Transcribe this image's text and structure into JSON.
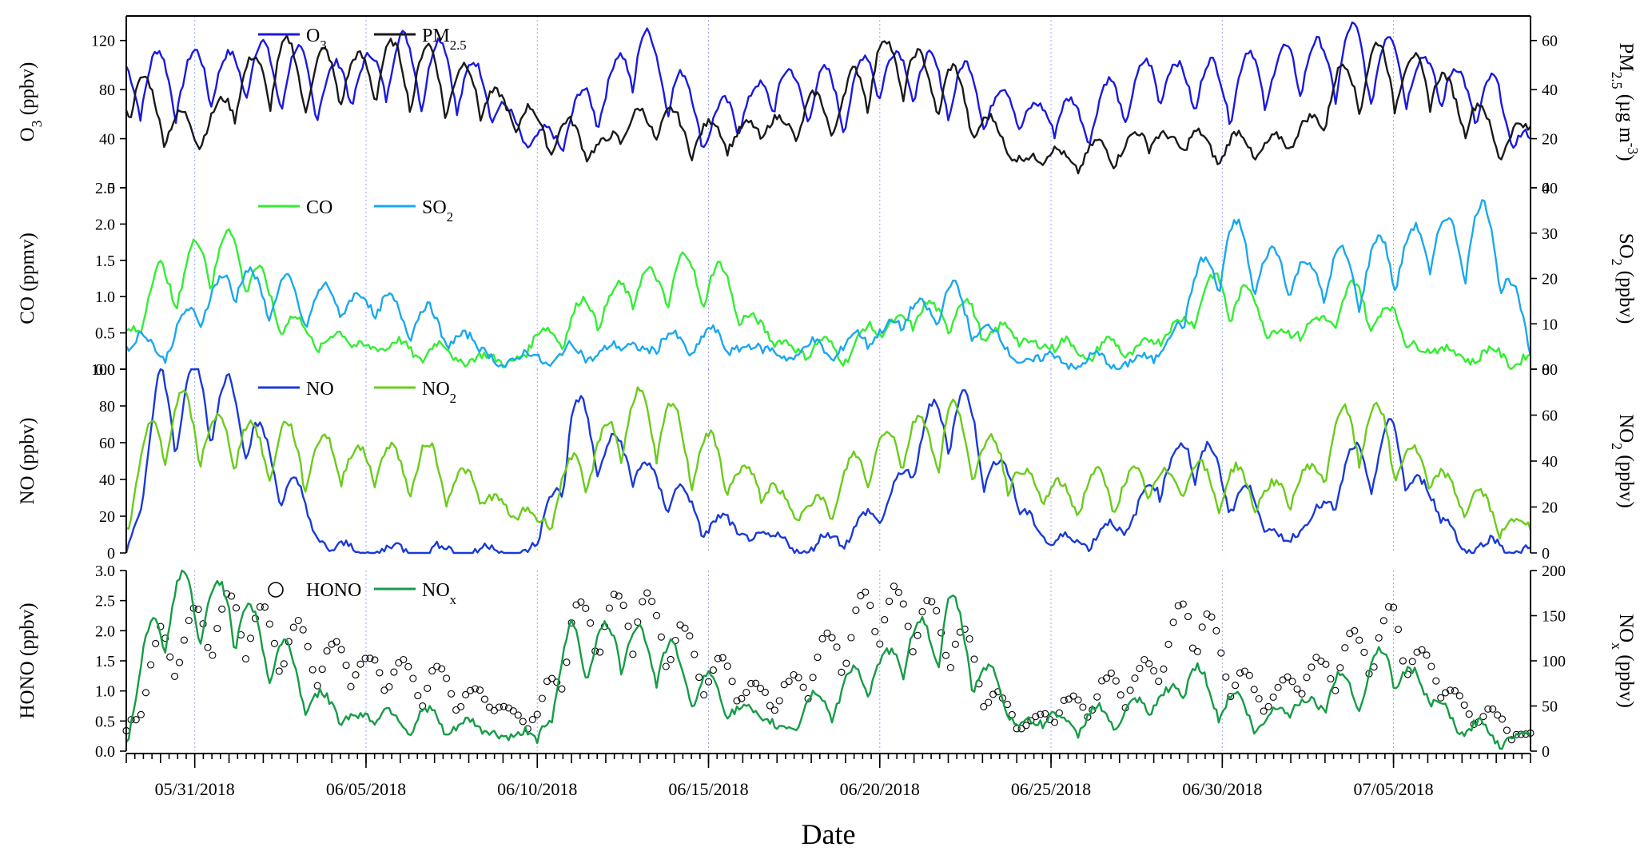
{
  "chart_data": {
    "type": "line",
    "x_axis": {
      "label": "Date",
      "start": "05/29/2018",
      "end": "07/09/2018",
      "tick_labels": [
        "05/31/2018",
        "06/05/2018",
        "06/10/2018",
        "06/15/2018",
        "06/20/2018",
        "06/25/2018",
        "06/30/2018",
        "07/05/2018"
      ]
    },
    "panels": [
      {
        "left_axis": {
          "label": "O3 (ppbv)",
          "range": [
            0,
            140
          ],
          "ticks": [
            "0",
            "40",
            "80",
            "120"
          ]
        },
        "right_axis": {
          "label": "PM2.5 (µg m-3)",
          "range": [
            0,
            70
          ],
          "ticks": [
            "0",
            "20",
            "40",
            "60"
          ]
        },
        "legend": [
          {
            "label": "O3",
            "color": "#1a1adf",
            "style": "line"
          },
          {
            "label": "PM2.5",
            "color": "#1a1a1a",
            "style": "line"
          }
        ],
        "series": [
          {
            "name": "O3",
            "axis": "left",
            "color": "#1a1adf",
            "x": [
              "05/29/2018",
              "05/31/2018",
              "06/02/2018",
              "06/04/2018",
              "06/06/2018",
              "06/08/2018",
              "06/10/2018",
              "06/12/2018",
              "06/13/2018",
              "06/15/2018",
              "06/17/2018",
              "06/19/2018",
              "06/20/2018",
              "06/22/2018",
              "06/24/2018",
              "06/26/2018",
              "06/28/2018",
              "06/30/2018",
              "07/02/2018",
              "07/04/2018",
              "07/06/2018",
              "07/08/2018",
              "07/09/2018"
            ],
            "values": [
              105,
              110,
              120,
              100,
              125,
              110,
              40,
              95,
              140,
              60,
              100,
              90,
              120,
              105,
              75,
              70,
              110,
              100,
              120,
              130,
              110,
              85,
              40
            ]
          },
          {
            "name": "PM2.5",
            "axis": "right",
            "color": "#1a1a1a",
            "x": [
              "05/29/2018",
              "05/31/2018",
              "06/02/2018",
              "06/04/2018",
              "06/06/2018",
              "06/08/2018",
              "06/10/2018",
              "06/12/2018",
              "06/13/2018",
              "06/15/2018",
              "06/17/2018",
              "06/19/2018",
              "06/20/2018",
              "06/22/2018",
              "06/24/2018",
              "06/26/2018",
              "06/28/2018",
              "06/30/2018",
              "07/02/2018",
              "07/04/2018",
              "07/06/2018",
              "07/08/2018",
              "07/09/2018"
            ],
            "values": [
              50,
              25,
              60,
              55,
              60,
              50,
              30,
              20,
              35,
              25,
              30,
              42,
              64,
              50,
              15,
              15,
              25,
              20,
              22,
              58,
              55,
              25,
              25
            ]
          }
        ]
      },
      {
        "left_axis": {
          "label": "CO (ppmv)",
          "range": [
            0,
            2.5
          ],
          "ticks": [
            "0.0",
            "0.5",
            "1.0",
            "1.5",
            "2.0",
            "2.5"
          ]
        },
        "right_axis": {
          "label": "SO2 (ppbv)",
          "range": [
            0,
            40
          ],
          "ticks": [
            "0",
            "10",
            "20",
            "30",
            "40"
          ]
        },
        "legend": [
          {
            "label": "CO",
            "color": "#33ee33",
            "style": "line"
          },
          {
            "label": "SO2",
            "color": "#1aa8ee",
            "style": "line"
          }
        ],
        "series": [
          {
            "name": "CO",
            "axis": "left",
            "color": "#33ee33",
            "x": [
              "05/29/2018",
              "05/30/2018",
              "06/01/2018",
              "06/03/2018",
              "06/05/2018",
              "06/07/2018",
              "06/09/2018",
              "06/11/2018",
              "06/13/2018",
              "06/15/2018",
              "06/17/2018",
              "06/19/2018",
              "06/20/2018",
              "06/22/2018",
              "06/24/2018",
              "06/26/2018",
              "06/28/2018",
              "06/30/2018",
              "07/02/2018",
              "07/04/2018",
              "07/06/2018",
              "07/08/2018",
              "07/09/2018"
            ],
            "values": [
              0.6,
              1.4,
              2.05,
              0.6,
              0.4,
              0.3,
              0.1,
              0.8,
              1.4,
              1.6,
              0.4,
              0.3,
              0.7,
              1.0,
              0.5,
              0.3,
              0.4,
              1.4,
              0.5,
              1.2,
              0.3,
              0.2,
              0.2
            ]
          },
          {
            "name": "SO2",
            "axis": "right",
            "color": "#1aa8ee",
            "x": [
              "05/29/2018",
              "05/30/2018",
              "06/01/2018",
              "06/03/2018",
              "06/05/2018",
              "06/07/2018",
              "06/09/2018",
              "06/11/2018",
              "06/13/2018",
              "06/15/2018",
              "06/17/2018",
              "06/19/2018",
              "06/20/2018",
              "06/22/2018",
              "06/24/2018",
              "06/26/2018",
              "06/28/2018",
              "06/30/2018",
              "07/02/2018",
              "07/04/2018",
              "07/06/2018",
              "07/08/2018",
              "07/09/2018"
            ],
            "values": [
              8,
              5,
              24,
              18,
              18,
              12,
              2,
              4,
              6,
              8,
              4,
              6,
              10,
              19,
              3,
              2,
              2,
              33,
              25,
              26,
              34,
              36,
              3
            ]
          }
        ]
      },
      {
        "left_axis": {
          "label": "NO (ppbv)",
          "range": [
            0,
            100
          ],
          "ticks": [
            "0",
            "20",
            "40",
            "60",
            "80",
            "100"
          ]
        },
        "right_axis": {
          "label": "NO2 (ppbv)",
          "range": [
            0,
            80
          ],
          "ticks": [
            "0",
            "20",
            "40",
            "60",
            "80"
          ]
        },
        "legend": [
          {
            "label": "NO",
            "color": "#1a3ad8",
            "style": "line"
          },
          {
            "label": "NO2",
            "color": "#6acc1a",
            "style": "line"
          }
        ],
        "series": [
          {
            "name": "NO",
            "axis": "left",
            "color": "#1a3ad8",
            "x": [
              "05/29/2018",
              "05/30/2018",
              "06/01/2018",
              "06/04/2018",
              "06/07/2018",
              "06/10/2018",
              "06/11/2018",
              "06/13/2018",
              "06/15/2018",
              "06/18/2018",
              "06/20/2018",
              "06/22/2018",
              "06/25/2018",
              "06/27/2018",
              "06/29/2018",
              "07/02/2018",
              "07/04/2018",
              "07/05/2018",
              "07/07/2018",
              "07/09/2018"
            ],
            "values": [
              0,
              100,
              100,
              2,
              1,
              1,
              85,
              55,
              20,
              2,
              25,
              100,
              5,
              15,
              70,
              6,
              60,
              70,
              5,
              3
            ]
          },
          {
            "name": "NO2",
            "axis": "right",
            "color": "#6acc1a",
            "x": [
              "05/29/2018",
              "05/30/2018",
              "06/01/2018",
              "06/04/2018",
              "06/07/2018",
              "06/10/2018",
              "06/11/2018",
              "06/13/2018",
              "06/15/2018",
              "06/18/2018",
              "06/20/2018",
              "06/22/2018",
              "06/25/2018",
              "06/27/2018",
              "06/29/2018",
              "07/02/2018",
              "07/04/2018",
              "07/05/2018",
              "07/07/2018",
              "07/09/2018"
            ],
            "values": [
              18,
              72,
              60,
              50,
              45,
              15,
              40,
              75,
              50,
              20,
              55,
              65,
              30,
              35,
              40,
              30,
              72,
              55,
              30,
              10
            ]
          }
        ]
      },
      {
        "left_axis": {
          "label": "HONO (ppbv)",
          "range": [
            0,
            3.0
          ],
          "ticks": [
            "0.0",
            "0.5",
            "1.0",
            "1.5",
            "2.0",
            "2.5",
            "3.0"
          ]
        },
        "right_axis": {
          "label": "NOx (ppbv)",
          "range": [
            0,
            200
          ],
          "ticks": [
            "0",
            "50",
            "100",
            "150",
            "200"
          ]
        },
        "legend": [
          {
            "label": "HONO",
            "color": "#000000",
            "style": "marker-open-circle"
          },
          {
            "label": "NOx",
            "color": "#159c45",
            "style": "line"
          }
        ],
        "series": [
          {
            "name": "HONO",
            "axis": "left",
            "color": "#000000",
            "marker": "open-circle",
            "x": [
              "05/29/2018",
              "05/30/2018",
              "06/01/2018",
              "06/04/2018",
              "06/07/2018",
              "06/10/2018",
              "06/11/2018",
              "06/13/2018",
              "06/15/2018",
              "06/17/2018",
              "06/20/2018",
              "06/22/2018",
              "06/24/2018",
              "06/26/2018",
              "06/28/2018",
              "06/29/2018",
              "07/01/2018",
              "07/04/2018",
              "07/05/2018",
              "07/07/2018",
              "07/09/2018"
            ],
            "values": [
              0.4,
              2.0,
              2.7,
              1.8,
              1.4,
              0.6,
              2.4,
              2.8,
              1.6,
              1.0,
              2.9,
              2.4,
              0.5,
              1.0,
              1.6,
              2.8,
              1.0,
              2.0,
              2.4,
              0.9,
              0.3
            ]
          },
          {
            "name": "NOx",
            "axis": "right",
            "color": "#159c45",
            "x": [
              "05/29/2018",
              "05/30/2018",
              "06/01/2018",
              "06/04/2018",
              "06/07/2018",
              "06/10/2018",
              "06/11/2018",
              "06/13/2018",
              "06/15/2018",
              "06/17/2018",
              "06/20/2018",
              "06/22/2018",
              "06/24/2018",
              "06/26/2018",
              "06/28/2018",
              "06/29/2018",
              "07/01/2018",
              "07/04/2018",
              "07/05/2018",
              "07/07/2018",
              "07/09/2018"
            ],
            "values": [
              20,
              195,
              195,
              50,
              40,
              15,
              140,
              145,
              80,
              30,
              110,
              175,
              40,
              40,
              60,
              100,
              40,
              90,
              120,
              30,
              15
            ]
          }
        ]
      }
    ]
  }
}
